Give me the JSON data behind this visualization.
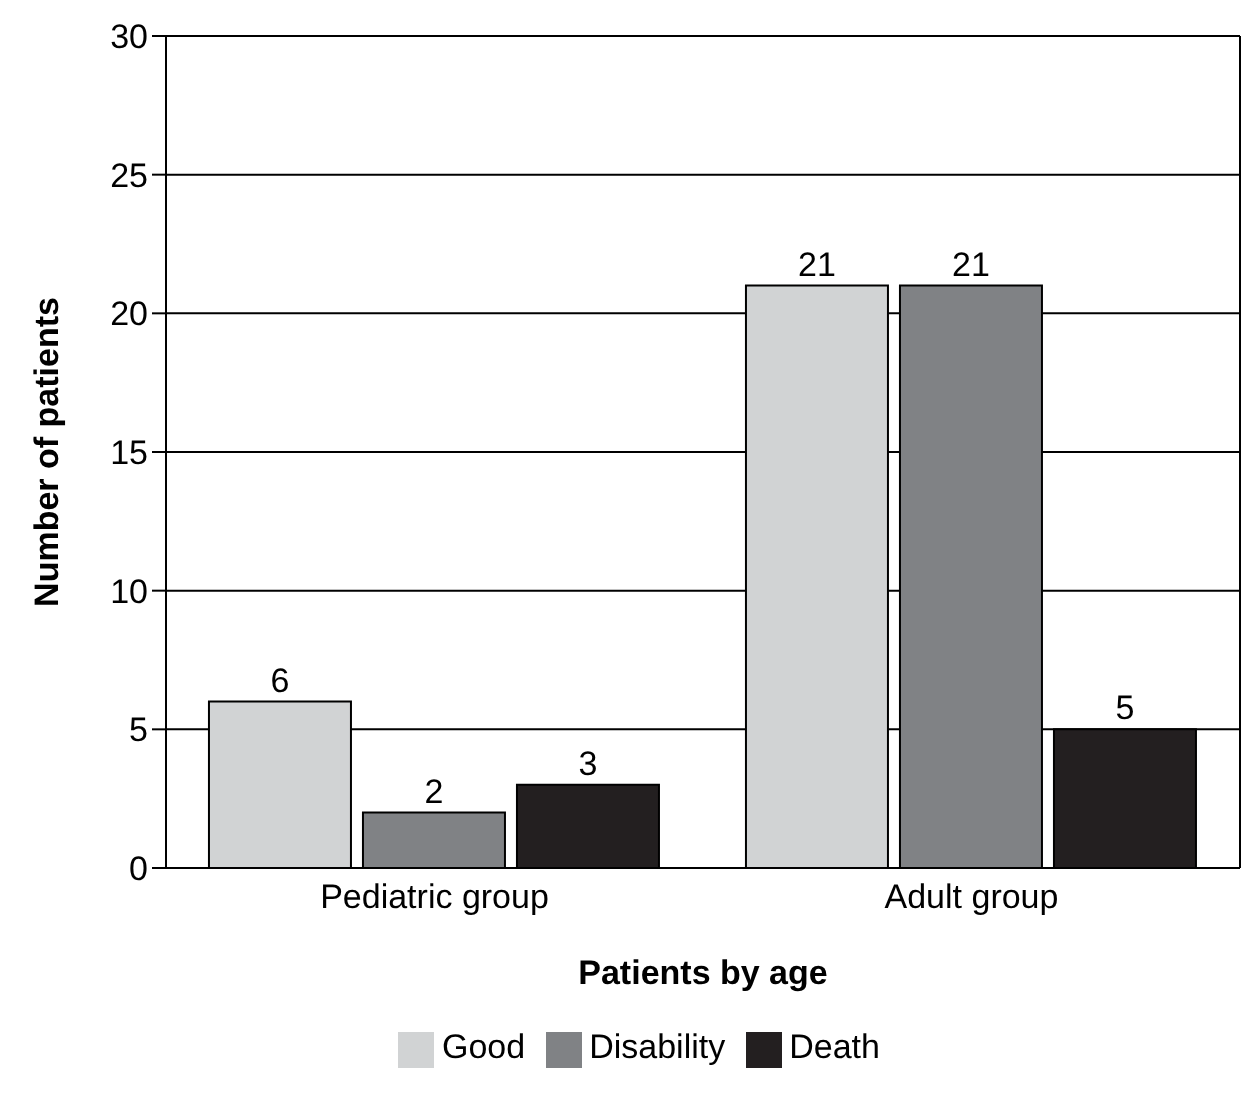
{
  "chart_data": {
    "type": "bar",
    "xlabel": "Patients by age",
    "ylabel": "Number of patients",
    "categories": [
      "Pediatric group",
      "Adult group"
    ],
    "series": [
      {
        "name": "Good",
        "color": "#d1d3d4",
        "values": [
          6,
          21
        ]
      },
      {
        "name": "Disability",
        "color": "#808285",
        "values": [
          2,
          21
        ]
      },
      {
        "name": "Death",
        "color": "#231f20",
        "values": [
          3,
          5
        ]
      }
    ],
    "ylim": [
      0,
      30
    ],
    "yticks": [
      0,
      5,
      10,
      15,
      20,
      25,
      30
    ],
    "grid": "y",
    "legend": "bottom",
    "data_labels": true
  }
}
